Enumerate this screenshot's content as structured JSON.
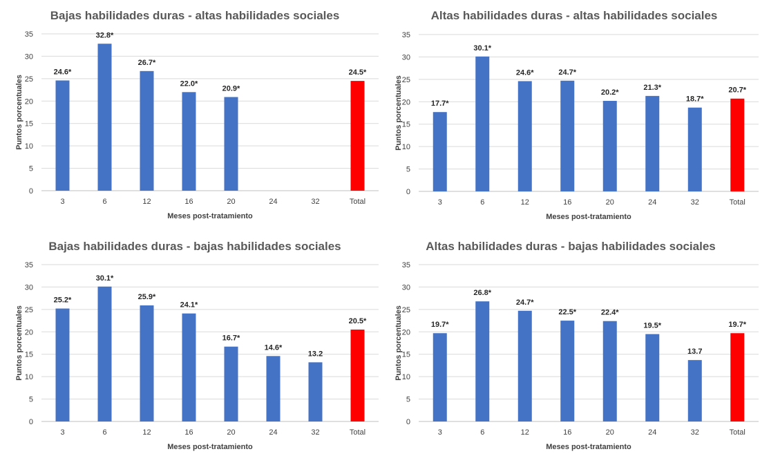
{
  "colors": {
    "bar": "#4472C4",
    "total_bar": "#FF0000"
  },
  "chart_data": [
    {
      "type": "bar",
      "title": "Bajas habilidades duras - altas habilidades sociales",
      "xlabel": "Meses post-tratamiento",
      "ylabel": "Puntos porcentuales",
      "ylim": [
        0,
        35
      ],
      "yticks": [
        0,
        5,
        10,
        15,
        20,
        25,
        30,
        35
      ],
      "categories": [
        "3",
        "6",
        "12",
        "16",
        "20",
        "24",
        "32",
        "Total"
      ],
      "values": [
        24.6,
        32.8,
        26.7,
        22.0,
        20.9,
        null,
        null,
        24.5
      ],
      "labels": [
        "24.6*",
        "32.8*",
        "26.7*",
        "22.0*",
        "20.9*",
        "",
        "",
        "24.5*"
      ],
      "grid": true,
      "legend": "none"
    },
    {
      "type": "bar",
      "title": "Altas habilidades duras - altas habilidades sociales",
      "xlabel": "Meses post-tratamiento",
      "ylabel": "Puntos porcentuales",
      "ylim": [
        0,
        35
      ],
      "yticks": [
        0,
        5,
        10,
        15,
        20,
        25,
        30,
        35
      ],
      "categories": [
        "3",
        "6",
        "12",
        "16",
        "20",
        "24",
        "32",
        "Total"
      ],
      "values": [
        17.7,
        30.1,
        24.6,
        24.7,
        20.2,
        21.3,
        18.7,
        20.7
      ],
      "labels": [
        "17.7*",
        "30.1*",
        "24.6*",
        "24.7*",
        "20.2*",
        "21.3*",
        "18.7*",
        "20.7*"
      ],
      "grid": true,
      "legend": "none"
    },
    {
      "type": "bar",
      "title": "Bajas habilidades duras - bajas habilidades sociales",
      "xlabel": "Meses post-tratamiento",
      "ylabel": "Puntos porcentuales",
      "ylim": [
        0,
        35
      ],
      "yticks": [
        0,
        5,
        10,
        15,
        20,
        25,
        30,
        35
      ],
      "categories": [
        "3",
        "6",
        "12",
        "16",
        "20",
        "24",
        "32",
        "Total"
      ],
      "values": [
        25.2,
        30.1,
        25.9,
        24.1,
        16.7,
        14.6,
        13.2,
        20.5
      ],
      "labels": [
        "25.2*",
        "30.1*",
        "25.9*",
        "24.1*",
        "16.7*",
        "14.6*",
        "13.2",
        "20.5*"
      ],
      "grid": true,
      "legend": "none"
    },
    {
      "type": "bar",
      "title": "Altas habilidades duras - bajas habilidades sociales",
      "xlabel": "Meses post-tratamiento",
      "ylabel": "Puntos porcentuales",
      "ylim": [
        0,
        35
      ],
      "yticks": [
        0,
        5,
        10,
        15,
        20,
        25,
        30,
        35
      ],
      "categories": [
        "3",
        "6",
        "12",
        "16",
        "20",
        "24",
        "32",
        "Total"
      ],
      "values": [
        19.7,
        26.8,
        24.7,
        22.5,
        22.4,
        19.5,
        13.7,
        19.7
      ],
      "labels": [
        "19.7*",
        "26.8*",
        "24.7*",
        "22.5*",
        "22.4*",
        "19.5*",
        "13.7",
        "19.7*"
      ],
      "grid": true,
      "legend": "none"
    }
  ]
}
